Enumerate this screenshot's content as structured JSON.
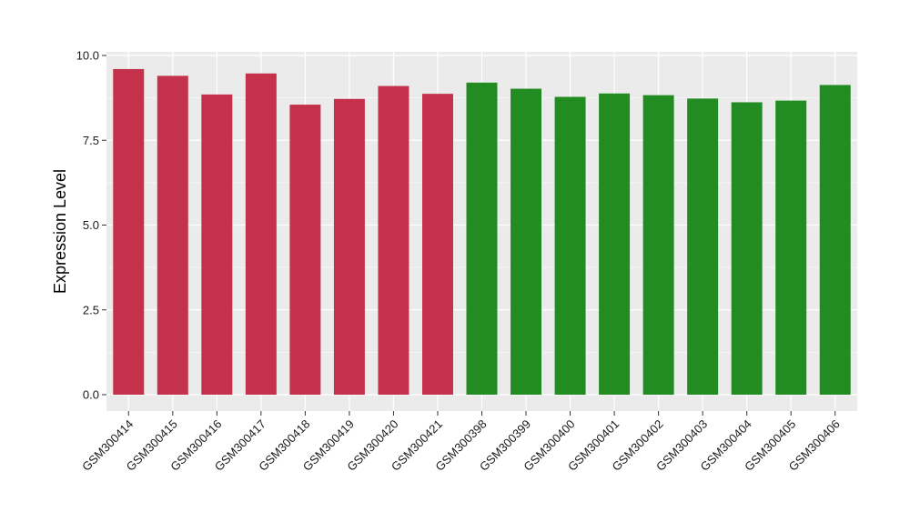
{
  "chart_data": {
    "type": "bar",
    "ylabel": "Expression Level",
    "xlabel": "",
    "ylim": [
      0,
      10
    ],
    "yticks": [
      0,
      2.5,
      5,
      7.5,
      10
    ],
    "ytick_labels": [
      "0.0",
      "2.5",
      "5.0",
      "7.5",
      "10.0"
    ],
    "grid": true,
    "legend": "none",
    "panel_background": "#ebebeb",
    "grid_color": "#ffffff",
    "categories": [
      "GSM300414",
      "GSM300415",
      "GSM300416",
      "GSM300417",
      "GSM300418",
      "GSM300419",
      "GSM300420",
      "GSM300421",
      "GSM300398",
      "GSM300399",
      "GSM300400",
      "GSM300401",
      "GSM300402",
      "GSM300403",
      "GSM300404",
      "GSM300405",
      "GSM300406"
    ],
    "values": [
      9.6,
      9.4,
      8.85,
      9.47,
      8.55,
      8.72,
      9.1,
      8.87,
      9.2,
      9.02,
      8.78,
      8.88,
      8.83,
      8.73,
      8.62,
      8.67,
      9.13
    ],
    "colors": [
      "#c3314a",
      "#c3314a",
      "#c3314a",
      "#c3314a",
      "#c3314a",
      "#c3314a",
      "#c3314a",
      "#c3314a",
      "#228b22",
      "#228b22",
      "#228b22",
      "#228b22",
      "#228b22",
      "#228b22",
      "#228b22",
      "#228b22",
      "#228b22"
    ]
  }
}
